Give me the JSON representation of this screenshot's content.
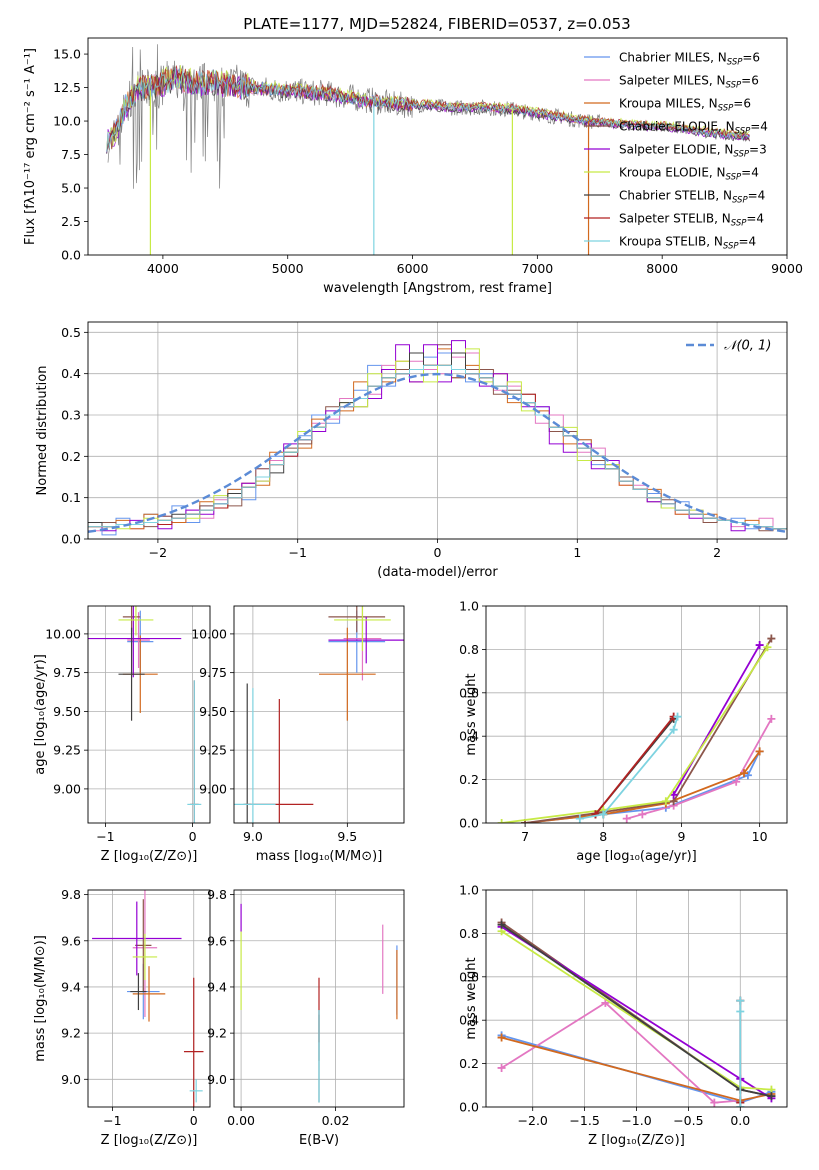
{
  "figure": {
    "title": "PLATE=1177, MJD=52824, FIBERID=0537, z=0.053"
  },
  "palette": [
    "#6495ed",
    "#e377c2",
    "#d2691e",
    "#8c564b",
    "#9400d3",
    "#c7ea46",
    "#404040",
    "#b22222",
    "#7ed3e0"
  ],
  "chart_data": [
    {
      "id": "spectrum",
      "type": "line",
      "xlabel": "wavelength [Angstrom, rest frame]",
      "ylabel": "Flux [fλ10⁻¹⁷ erg cm⁻² s⁻¹ A⁻¹]",
      "xlim": [
        3400,
        9000
      ],
      "ylim": [
        0,
        16.2
      ],
      "xticks": [
        4000,
        5000,
        6000,
        7000,
        8000,
        9000
      ],
      "yticks": [
        0.0,
        2.5,
        5.0,
        7.5,
        10.0,
        12.5,
        15.0
      ],
      "legend_position": "top-right",
      "data_series": {
        "name": "data",
        "color": "#808080",
        "x": [
          3600,
          3700,
          3800,
          3900,
          4000,
          4100,
          4200,
          4300,
          4400,
          4500,
          4600,
          4700,
          4800,
          4900,
          5000,
          5100,
          5200,
          5300,
          5400,
          5500,
          5600,
          5700,
          5800,
          5900,
          6000,
          6100,
          6200,
          6300,
          6400,
          6500,
          6600,
          6700,
          6800,
          6900,
          7000,
          7100,
          7200,
          7300,
          7400,
          7500,
          7600,
          7700,
          7800,
          7900,
          8000,
          8100,
          8200,
          8300,
          8400,
          8500,
          8600,
          8700
        ],
        "y": [
          8.5,
          11.0,
          12.2,
          12.3,
          12.6,
          13.0,
          12.9,
          12.8,
          12.9,
          12.6,
          12.7,
          12.5,
          12.4,
          12.3,
          12.3,
          12.2,
          12.1,
          12.1,
          11.9,
          11.8,
          11.6,
          11.5,
          11.3,
          11.2,
          11.2,
          11.2,
          11.1,
          11.0,
          11.0,
          11.0,
          11.0,
          10.9,
          10.9,
          10.7,
          10.6,
          10.4,
          10.3,
          10.1,
          10.0,
          9.9,
          9.8,
          9.8,
          9.7,
          9.6,
          9.5,
          9.5,
          9.3,
          9.2,
          9.1,
          9.0,
          8.9,
          8.8
        ]
      },
      "model_x": [
        3550,
        3600,
        3700,
        3800,
        3900,
        4000,
        4100,
        4200,
        4300,
        4400,
        4500,
        4600,
        4700,
        4800,
        4900,
        5000,
        5100,
        5200,
        5300,
        5400,
        5500,
        5600,
        5700,
        5800,
        5900,
        6000,
        6100,
        6200,
        6300,
        6400,
        6500,
        6600,
        6700,
        6800,
        6900,
        7000,
        7100,
        7200,
        7300,
        7400,
        7500,
        7600,
        7700,
        7800,
        7900,
        8000,
        8100,
        8200,
        8300,
        8400,
        8500,
        8600,
        8700
      ],
      "model_y": [
        8.6,
        8.6,
        11.1,
        12.4,
        12.6,
        12.8,
        13.2,
        12.9,
        12.8,
        12.9,
        12.7,
        12.6,
        12.5,
        12.4,
        12.3,
        12.3,
        12.2,
        12.1,
        12.1,
        11.9,
        11.7,
        11.5,
        11.4,
        11.3,
        11.2,
        11.2,
        11.2,
        11.1,
        11.0,
        11.0,
        11.0,
        11.0,
        10.9,
        10.9,
        10.7,
        10.6,
        10.4,
        10.3,
        10.1,
        10.0,
        9.9,
        9.8,
        9.8,
        9.7,
        9.6,
        9.6,
        9.5,
        9.4,
        9.2,
        9.1,
        9.0,
        8.9,
        8.8
      ],
      "series": [
        {
          "name": "Chabrier MILES, N$_{SSP}$=6",
          "color": "#6495ed",
          "offset": 0.05
        },
        {
          "name": "Salpeter MILES, N$_{SSP}$=6",
          "color": "#e377c2",
          "offset": -0.05
        },
        {
          "name": "Kroupa MILES, N$_{SSP}$=6",
          "color": "#d2691e",
          "offset": 0.0
        },
        {
          "name": "Chabrier ELODIE, N$_{SSP}$=4",
          "color": "#8c564b",
          "offset": 0.1
        },
        {
          "name": "Salpeter ELODIE, N$_{SSP}$=3",
          "color": "#9400d3",
          "offset": -0.1
        },
        {
          "name": "Kroupa ELODIE, N$_{SSP}$=4",
          "color": "#c7ea46",
          "offset": 0.2
        },
        {
          "name": "Chabrier STELIB, N$_{SSP}$=4",
          "color": "#404040",
          "offset": -0.15
        },
        {
          "name": "Salpeter STELIB, N$_{SSP}$=4",
          "color": "#b22222",
          "offset": 0.15
        },
        {
          "name": "Kroupa STELIB, N$_{SSP}$=4",
          "color": "#7ed3e0",
          "offset": 0.0
        }
      ],
      "annotations": [
        {
          "type": "vline",
          "x": 3900,
          "y0": 0,
          "y1": 12.3,
          "color": "#c7ea46"
        },
        {
          "type": "vline",
          "x": 5690,
          "y0": 0,
          "y1": 11.5,
          "color": "#7ed3e0"
        },
        {
          "type": "vline",
          "x": 6800,
          "y0": 0,
          "y1": 10.9,
          "color": "#c7ea46"
        },
        {
          "type": "vline",
          "x": 7410,
          "y0": 0,
          "y1": 10.0,
          "color": "#d2691e"
        }
      ]
    },
    {
      "id": "residuals",
      "type": "step",
      "xlabel": "(data-model)/error",
      "ylabel": "Normed distribution",
      "xlim": [
        -2.5,
        2.5
      ],
      "ylim": [
        0,
        0.525
      ],
      "xticks": [
        -2,
        -1,
        0,
        1,
        2
      ],
      "yticks": [
        0.0,
        0.1,
        0.2,
        0.3,
        0.4,
        0.5
      ],
      "bins": [
        -2.5,
        -2.4,
        -2.3,
        -2.2,
        -2.1,
        -2.0,
        -1.9,
        -1.8,
        -1.7,
        -1.6,
        -1.5,
        -1.4,
        -1.3,
        -1.2,
        -1.1,
        -1.0,
        -0.9,
        -0.8,
        -0.7,
        -0.6,
        -0.5,
        -0.4,
        -0.3,
        -0.2,
        -0.1,
        0.0,
        0.1,
        0.2,
        0.3,
        0.4,
        0.5,
        0.6,
        0.7,
        0.8,
        0.9,
        1.0,
        1.1,
        1.2,
        1.3,
        1.4,
        1.5,
        1.6,
        1.7,
        1.8,
        1.9,
        2.0,
        2.1,
        2.2,
        2.3,
        2.4,
        2.5
      ],
      "base": [
        0.03,
        0.03,
        0.035,
        0.035,
        0.04,
        0.045,
        0.05,
        0.06,
        0.07,
        0.085,
        0.1,
        0.125,
        0.15,
        0.18,
        0.21,
        0.24,
        0.27,
        0.3,
        0.32,
        0.34,
        0.37,
        0.39,
        0.4,
        0.41,
        0.42,
        0.42,
        0.41,
        0.4,
        0.39,
        0.37,
        0.35,
        0.33,
        0.3,
        0.27,
        0.25,
        0.22,
        0.2,
        0.17,
        0.14,
        0.12,
        0.1,
        0.085,
        0.07,
        0.06,
        0.05,
        0.045,
        0.04,
        0.035,
        0.03,
        0.025
      ],
      "series_colors": [
        "#6495ed",
        "#e377c2",
        "#d2691e",
        "#8c564b",
        "#9400d3",
        "#c7ea46",
        "#404040",
        "#b22222",
        "#7ed3e0"
      ],
      "reference": {
        "name": "$\\mathcal{N}(0,1)$",
        "label": "𝒩(0, 1)",
        "color": "#5b8bd6",
        "style": "dashed",
        "mean": 0,
        "sigma": 1
      },
      "legend_position": "top-right"
    },
    {
      "id": "age-vs-Z",
      "type": "errorbar",
      "xlabel": "Z [log₁₀(Z/Z⊙)]",
      "ylabel": "age  [log₁₀(age/yr)]",
      "xlim": [
        -1.2,
        0.2
      ],
      "ylim": [
        8.78,
        10.18
      ],
      "xticks": [
        -1,
        0
      ],
      "yticks": [
        9.0,
        9.25,
        9.5,
        9.75,
        10.0
      ],
      "points": [
        {
          "x": -0.6,
          "y": 9.95,
          "xerr": 0.15,
          "yerr": 0.2,
          "color": "#6495ed"
        },
        {
          "x": -0.62,
          "y": 9.96,
          "xerr": 0.13,
          "yerr": 0.18,
          "color": "#e377c2"
        },
        {
          "x": -0.6,
          "y": 9.74,
          "xerr": 0.2,
          "yerr": 0.25,
          "color": "#d2691e"
        },
        {
          "x": -0.7,
          "y": 10.11,
          "xerr": 0.1,
          "yerr": 0.1,
          "color": "#8c564b"
        },
        {
          "x": -0.68,
          "y": 9.97,
          "xerr": 0.55,
          "yerr": 0.25,
          "color": "#9400d3"
        },
        {
          "x": -0.65,
          "y": 10.09,
          "xerr": 0.2,
          "yerr": 0.1,
          "color": "#c7ea46"
        },
        {
          "x": -0.7,
          "y": 9.74,
          "xerr": 0.15,
          "yerr": 0.3,
          "color": "#404040"
        },
        {
          "x": 0.02,
          "y": 8.9,
          "xerr": 0.05,
          "yerr": 0.8,
          "color": "#b22222"
        },
        {
          "x": 0.02,
          "y": 8.9,
          "xerr": 0.08,
          "yerr": 0.8,
          "color": "#7ed3e0"
        }
      ]
    },
    {
      "id": "age-vs-mass",
      "type": "errorbar",
      "xlabel": "mass [log₁₀(M/M⊙)]",
      "ylabel": "",
      "xlim": [
        8.9,
        9.8
      ],
      "ylim": [
        8.78,
        10.18
      ],
      "xticks": [
        9.0,
        9.5
      ],
      "yticks": [
        9.0,
        9.25,
        9.5,
        9.75,
        10.0
      ],
      "points": [
        {
          "x": 9.55,
          "y": 9.95,
          "xerr": 0.15,
          "yerr": 0.2,
          "color": "#6495ed"
        },
        {
          "x": 9.58,
          "y": 9.97,
          "xerr": 0.1,
          "yerr": 0.27,
          "color": "#e377c2"
        },
        {
          "x": 9.5,
          "y": 9.74,
          "xerr": 0.15,
          "yerr": 0.3,
          "color": "#d2691e"
        },
        {
          "x": 9.55,
          "y": 10.11,
          "xerr": 0.15,
          "yerr": 0.1,
          "color": "#8c564b"
        },
        {
          "x": 9.6,
          "y": 9.96,
          "xerr": 0.2,
          "yerr": 0.15,
          "color": "#9400d3"
        },
        {
          "x": 9.58,
          "y": 10.09,
          "xerr": 0.15,
          "yerr": 0.2,
          "color": "#c7ea46"
        },
        {
          "x": 8.97,
          "y": 8.9,
          "xerr": 0.02,
          "yerr": 0.78,
          "color": "#404040"
        },
        {
          "x": 9.14,
          "y": 8.9,
          "xerr": 0.18,
          "yerr": 0.68,
          "color": "#b22222"
        },
        {
          "x": 9.0,
          "y": 8.9,
          "xerr": 0.12,
          "yerr": 0.75,
          "color": "#7ed3e0"
        }
      ]
    },
    {
      "id": "weight-vs-age",
      "type": "line",
      "xlabel": "age  [log₁₀(age/yr)]",
      "ylabel": "mass weight",
      "xlim": [
        6.5,
        10.35
      ],
      "ylim": [
        0,
        1.0
      ],
      "xticks": [
        7,
        8,
        9,
        10
      ],
      "yticks": [
        0.0,
        0.2,
        0.4,
        0.6,
        0.8,
        1.0
      ],
      "series": [
        {
          "color": "#6495ed",
          "x": [
            7.0,
            8.0,
            8.8,
            9.85,
            10.0
          ],
          "y": [
            0.0,
            0.04,
            0.07,
            0.22,
            0.33
          ]
        },
        {
          "color": "#e377c2",
          "x": [
            8.3,
            8.5,
            8.9,
            9.7,
            10.15
          ],
          "y": [
            0.02,
            0.04,
            0.08,
            0.19,
            0.48
          ]
        },
        {
          "color": "#d2691e",
          "x": [
            7.0,
            8.0,
            8.8,
            9.8,
            10.0
          ],
          "y": [
            0.0,
            0.04,
            0.09,
            0.23,
            0.33
          ]
        },
        {
          "color": "#8c564b",
          "x": [
            7.0,
            8.0,
            8.9,
            10.15
          ],
          "y": [
            0.0,
            0.05,
            0.1,
            0.85
          ]
        },
        {
          "color": "#9400d3",
          "x": [
            8.9,
            10.0
          ],
          "y": [
            0.13,
            0.82
          ]
        },
        {
          "color": "#c7ea46",
          "x": [
            6.7,
            8.0,
            8.8,
            10.1
          ],
          "y": [
            0.0,
            0.06,
            0.1,
            0.81
          ]
        },
        {
          "color": "#404040",
          "x": [
            7.9,
            8.9
          ],
          "y": [
            0.04,
            0.48
          ]
        },
        {
          "color": "#b22222",
          "x": [
            7.9,
            8.9
          ],
          "y": [
            0.04,
            0.49
          ]
        },
        {
          "color": "#7ed3e0",
          "x": [
            7.7,
            8.0,
            8.9,
            8.95
          ],
          "y": [
            0.02,
            0.04,
            0.43,
            0.49
          ]
        }
      ]
    },
    {
      "id": "mass-vs-Z",
      "type": "errorbar",
      "xlabel": "Z [log₁₀(Z/Z⊙)]",
      "ylabel": "mass [log₁₀(M/M⊙)]",
      "xlim": [
        -1.3,
        0.2
      ],
      "ylim": [
        8.88,
        9.82
      ],
      "xticks": [
        -1,
        0
      ],
      "yticks": [
        9.0,
        9.2,
        9.4,
        9.6,
        9.8
      ],
      "points": [
        {
          "x": -0.62,
          "y": 9.38,
          "xerr": 0.2,
          "yerr": 0.12,
          "color": "#6495ed"
        },
        {
          "x": -0.6,
          "y": 9.57,
          "xerr": 0.15,
          "yerr": 0.3,
          "color": "#e377c2"
        },
        {
          "x": -0.55,
          "y": 9.37,
          "xerr": 0.2,
          "yerr": 0.12,
          "color": "#d2691e"
        },
        {
          "x": -0.62,
          "y": 9.58,
          "xerr": 0.1,
          "yerr": 0.2,
          "color": "#8c564b"
        },
        {
          "x": -0.7,
          "y": 9.61,
          "xerr": 0.55,
          "yerr": 0.16,
          "color": "#9400d3"
        },
        {
          "x": -0.6,
          "y": 9.53,
          "xerr": 0.15,
          "yerr": 0.1,
          "color": "#c7ea46"
        },
        {
          "x": -0.68,
          "y": 9.38,
          "xerr": 0.1,
          "yerr": 0.08,
          "color": "#404040"
        },
        {
          "x": 0.0,
          "y": 9.12,
          "xerr": 0.12,
          "yerr": 0.32,
          "color": "#b22222"
        },
        {
          "x": 0.03,
          "y": 8.95,
          "xerr": 0.08,
          "yerr": 0.05,
          "color": "#7ed3e0"
        }
      ]
    },
    {
      "id": "mass-vs-EBV",
      "type": "errorbar",
      "xlabel": "E(B-V)",
      "ylabel": "",
      "xlim": [
        -0.0015,
        0.0345
      ],
      "ylim": [
        8.88,
        9.82
      ],
      "xticks": [
        0.0,
        0.02
      ],
      "yticks": [
        9.0,
        9.2,
        9.4,
        9.6,
        9.8
      ],
      "points": [
        {
          "x": 0.033,
          "y": 9.43,
          "xerr": 0.0,
          "yerr": 0.15,
          "color": "#6495ed"
        },
        {
          "x": 0.03,
          "y": 9.52,
          "xerr": 0.0,
          "yerr": 0.15,
          "color": "#e377c2"
        },
        {
          "x": 0.033,
          "y": 9.41,
          "xerr": 0.0,
          "yerr": 0.15,
          "color": "#d2691e"
        },
        {
          "x": 0.0165,
          "y": 9.18,
          "xerr": 0.0,
          "yerr": 0.1,
          "color": "#8c564b"
        },
        {
          "x": 0.0,
          "y": 9.7,
          "xerr": 0.0,
          "yerr": 0.06,
          "color": "#9400d3"
        },
        {
          "x": 0.0,
          "y": 9.47,
          "xerr": 0.0,
          "yerr": 0.17,
          "color": "#c7ea46"
        },
        {
          "x": 0.0165,
          "y": 9.1,
          "xerr": 0.0,
          "yerr": 0.2,
          "color": "#404040"
        },
        {
          "x": 0.0165,
          "y": 9.3,
          "xerr": 0.0,
          "yerr": 0.14,
          "color": "#b22222"
        },
        {
          "x": 0.0165,
          "y": 9.1,
          "xerr": 0.0,
          "yerr": 0.2,
          "color": "#7ed3e0"
        }
      ]
    },
    {
      "id": "weight-vs-Z",
      "type": "line",
      "xlabel": "Z [log₁₀(Z/Z⊙)]",
      "ylabel": "mass weight",
      "xlim": [
        -2.45,
        0.45
      ],
      "ylim": [
        0,
        1.0
      ],
      "xticks": [
        -2.0,
        -1.5,
        -1.0,
        -0.5,
        0.0
      ],
      "yticks": [
        0.0,
        0.2,
        0.4,
        0.6,
        0.8,
        1.0
      ],
      "series": [
        {
          "color": "#6495ed",
          "x": [
            -2.3,
            0.0,
            0.3
          ],
          "y": [
            0.33,
            0.02,
            0.07
          ]
        },
        {
          "color": "#e377c2",
          "x": [
            -2.3,
            -1.3,
            -0.25,
            0.0
          ],
          "y": [
            0.18,
            0.48,
            0.02,
            0.03
          ]
        },
        {
          "color": "#d2691e",
          "x": [
            -2.3,
            0.0,
            0.3
          ],
          "y": [
            0.32,
            0.03,
            0.06
          ]
        },
        {
          "color": "#8c564b",
          "x": [
            -2.3,
            0.0,
            0.3
          ],
          "y": [
            0.85,
            0.08,
            0.05
          ]
        },
        {
          "color": "#9400d3",
          "x": [
            -2.3,
            0.0,
            0.3
          ],
          "y": [
            0.83,
            0.13,
            0.04
          ]
        },
        {
          "color": "#c7ea46",
          "x": [
            -2.3,
            0.0,
            0.3
          ],
          "y": [
            0.81,
            0.09,
            0.08
          ]
        },
        {
          "color": "#404040",
          "x": [
            -2.3,
            0.0,
            0.3
          ],
          "y": [
            0.84,
            0.08,
            0.05
          ]
        },
        {
          "color": "#b22222",
          "x": [
            0.0,
            0.0
          ],
          "y": [
            0.02,
            0.49
          ]
        },
        {
          "color": "#7ed3e0",
          "x": [
            0.0,
            0.0,
            0.0
          ],
          "y": [
            0.0,
            0.44,
            0.49
          ]
        }
      ]
    }
  ]
}
